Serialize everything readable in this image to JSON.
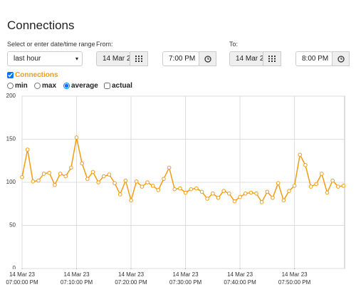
{
  "header": {
    "title": "Connections"
  },
  "controls": {
    "range_label": "Select or enter date/time range",
    "range_value": "last hour",
    "from_label": "From:",
    "from_date": "14 Mar 2",
    "from_time": "7:00 PM",
    "to_label": "To:",
    "to_date": "14 Mar 2",
    "to_time": "8:00 PM"
  },
  "series_toggle": {
    "label": "Connections",
    "checked": true
  },
  "modes": [
    {
      "label": "min",
      "kind": "radio",
      "checked": false
    },
    {
      "label": "max",
      "kind": "radio",
      "checked": false
    },
    {
      "label": "average",
      "kind": "radio",
      "checked": true
    },
    {
      "label": "actual",
      "kind": "checkbox",
      "checked": false
    }
  ],
  "chart_data": {
    "type": "line",
    "color": "#f39c12",
    "grid": true,
    "x": [
      0,
      1,
      2,
      3,
      4,
      5,
      6,
      7,
      8,
      9,
      10,
      11,
      12,
      13,
      14,
      15,
      16,
      17,
      18,
      19,
      20,
      21,
      22,
      23,
      24,
      25,
      26,
      27,
      28,
      29,
      30,
      31,
      32,
      33,
      34,
      35,
      36,
      37,
      38,
      39,
      40,
      41,
      42,
      43,
      44,
      45,
      46,
      47,
      48,
      49,
      50,
      51,
      52,
      53,
      54,
      55,
      56,
      57,
      58,
      59
    ],
    "values": [
      106,
      138,
      101,
      102,
      110,
      111,
      97,
      110,
      107,
      117,
      152,
      122,
      104,
      112,
      100,
      107,
      109,
      99,
      86,
      102,
      79,
      101,
      95,
      100,
      96,
      91,
      104,
      117,
      92,
      93,
      88,
      92,
      93,
      89,
      81,
      87,
      82,
      90,
      87,
      78,
      83,
      87,
      88,
      87,
      77,
      89,
      82,
      99,
      79,
      90,
      96,
      132,
      120,
      95,
      98,
      110,
      88,
      102,
      95,
      96
    ],
    "xlim": [
      0,
      59.2
    ],
    "xticks": [
      {
        "value": 0,
        "label": "14 Mar 23 07:00:00 PM"
      },
      {
        "value": 10,
        "label": "14 Mar 23 07:10:00 PM"
      },
      {
        "value": 20,
        "label": "14 Mar 23 07:20:00 PM"
      },
      {
        "value": 30,
        "label": "14 Mar 23 07:30:00 PM"
      },
      {
        "value": 40,
        "label": "14 Mar 23 07:40:00 PM"
      },
      {
        "value": 50,
        "label": "14 Mar 23 07:50:00 PM"
      }
    ],
    "ylim": [
      0,
      200
    ],
    "yticks": [
      0,
      50,
      100,
      150,
      200
    ]
  }
}
